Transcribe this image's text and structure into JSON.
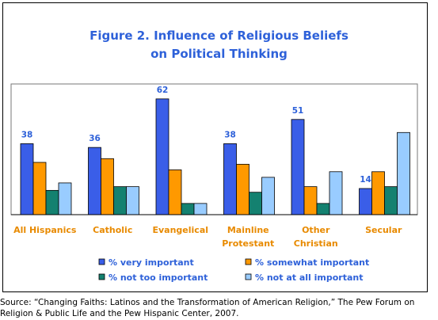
{
  "chart_data": {
    "type": "bar",
    "title": "Figure 2. Influence of Religious Beliefs on Political Thinking",
    "title_lines": [
      "Figure 2. Influence of Religious Beliefs",
      "on Political Thinking"
    ],
    "categories": [
      "All Hispanics",
      "Catholic",
      "Evangelical",
      "Mainline Protestant",
      "Other Christian",
      "Secular"
    ],
    "category_lines": [
      [
        "All Hispanics"
      ],
      [
        "Catholic"
      ],
      [
        "Evangelical"
      ],
      [
        "Mainline",
        "Protestant"
      ],
      [
        "Other",
        "Christian"
      ],
      [
        "Secular"
      ]
    ],
    "series": [
      {
        "name": "% very important",
        "values": [
          38,
          36,
          62,
          38,
          51,
          14
        ],
        "color": "#3a5ee8"
      },
      {
        "name": "% somewhat important",
        "values": [
          28,
          30,
          24,
          27,
          15,
          23
        ],
        "color": "#ff9900"
      },
      {
        "name": "% not too important",
        "values": [
          13,
          15,
          6,
          12,
          6,
          15
        ],
        "color": "#148170"
      },
      {
        "name": "% not at all important",
        "values": [
          17,
          15,
          6,
          20,
          23,
          44
        ],
        "color": "#99ccff"
      }
    ],
    "data_labels": [
      "38",
      "36",
      "62",
      "38",
      "51",
      "14"
    ],
    "ylim": [
      0,
      70
    ],
    "xlabel": "",
    "ylabel": "",
    "grid": false,
    "legend_position": "bottom"
  },
  "source_lines": [
    "Source: “Changing Faiths: Latinos and the Transformation of American Religion,” The Pew Forum on",
    "Religion & Public Life and the Pew Hispanic Center, 2007."
  ],
  "colors": {
    "title": "#2e61d9",
    "category_label": "#e88a00",
    "data_label": "#2e61d9",
    "legend_text": "#2e61d9",
    "plot_background": "#ffffff",
    "plot_border": "#777777",
    "baseline": "#000000"
  }
}
